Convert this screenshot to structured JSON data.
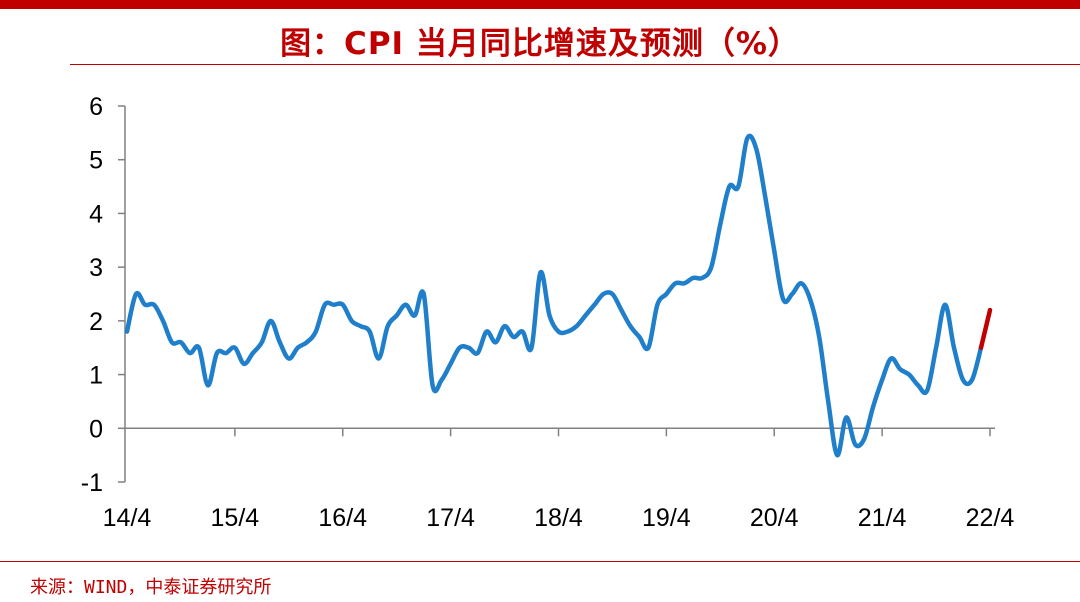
{
  "header": {
    "title": "图：CPI 当月同比增速及预测（%）"
  },
  "footer": {
    "source": "来源：WIND，中泰证券研究所"
  },
  "colors": {
    "accent": "#C00000",
    "series": "#1F7FCB",
    "forecast": "#C00000",
    "axis": "#808080"
  },
  "chart_data": {
    "type": "line",
    "title": "图：CPI 当月同比增速及预测（%）",
    "xlabel": "",
    "ylabel": "",
    "ylim": [
      -1,
      6
    ],
    "yticks": [
      "-1",
      "0",
      "1",
      "2",
      "3",
      "4",
      "5",
      "6"
    ],
    "xticks": [
      "14/4",
      "15/4",
      "16/4",
      "17/4",
      "18/4",
      "19/4",
      "20/4",
      "21/4",
      "22/4"
    ],
    "grid": false,
    "legend": "none",
    "series": [
      {
        "role": "actual",
        "x": [
          "2014-04",
          "2014-05",
          "2014-06",
          "2014-07",
          "2014-08",
          "2014-09",
          "2014-10",
          "2014-11",
          "2014-12",
          "2015-01",
          "2015-02",
          "2015-03",
          "2015-04",
          "2015-05",
          "2015-06",
          "2015-07",
          "2015-08",
          "2015-09",
          "2015-10",
          "2015-11",
          "2015-12",
          "2016-01",
          "2016-02",
          "2016-03",
          "2016-04",
          "2016-05",
          "2016-06",
          "2016-07",
          "2016-08",
          "2016-09",
          "2016-10",
          "2016-11",
          "2016-12",
          "2017-01",
          "2017-02",
          "2017-03",
          "2017-04",
          "2017-05",
          "2017-06",
          "2017-07",
          "2017-08",
          "2017-09",
          "2017-10",
          "2017-11",
          "2017-12",
          "2018-01",
          "2018-02",
          "2018-03",
          "2018-04",
          "2018-05",
          "2018-06",
          "2018-07",
          "2018-08",
          "2018-09",
          "2018-10",
          "2018-11",
          "2018-12",
          "2019-01",
          "2019-02",
          "2019-03",
          "2019-04",
          "2019-05",
          "2019-06",
          "2019-07",
          "2019-08",
          "2019-09",
          "2019-10",
          "2019-11",
          "2019-12",
          "2020-01",
          "2020-02",
          "2020-03",
          "2020-04",
          "2020-05",
          "2020-06",
          "2020-07",
          "2020-08",
          "2020-09",
          "2020-10",
          "2020-11",
          "2020-12",
          "2021-01",
          "2021-02",
          "2021-03",
          "2021-04",
          "2021-05",
          "2021-06",
          "2021-07",
          "2021-08",
          "2021-09",
          "2021-10",
          "2021-11",
          "2021-12",
          "2022-01",
          "2022-02",
          "2022-03"
        ],
        "values": [
          1.8,
          2.5,
          2.3,
          2.3,
          2.0,
          1.6,
          1.6,
          1.4,
          1.5,
          0.8,
          1.4,
          1.4,
          1.5,
          1.2,
          1.4,
          1.6,
          2.0,
          1.6,
          1.3,
          1.5,
          1.6,
          1.8,
          2.3,
          2.3,
          2.3,
          2.0,
          1.9,
          1.8,
          1.3,
          1.9,
          2.1,
          2.3,
          2.1,
          2.5,
          0.8,
          0.9,
          1.2,
          1.5,
          1.5,
          1.4,
          1.8,
          1.6,
          1.9,
          1.7,
          1.8,
          1.5,
          2.9,
          2.1,
          1.8,
          1.8,
          1.9,
          2.1,
          2.3,
          2.5,
          2.5,
          2.2,
          1.9,
          1.7,
          1.5,
          2.3,
          2.5,
          2.7,
          2.7,
          2.8,
          2.8,
          3.0,
          3.8,
          4.5,
          4.5,
          5.4,
          5.2,
          4.3,
          3.3,
          2.4,
          2.5,
          2.7,
          2.4,
          1.7,
          0.5,
          -0.5,
          0.2,
          -0.3,
          -0.2,
          0.4,
          0.9,
          1.3,
          1.1,
          1.0,
          0.8,
          0.7,
          1.5,
          2.3,
          1.5,
          0.9,
          0.9,
          1.5
        ]
      },
      {
        "role": "forecast",
        "x": [
          "2022-03",
          "2022-04"
        ],
        "values": [
          1.5,
          2.2
        ]
      }
    ]
  }
}
